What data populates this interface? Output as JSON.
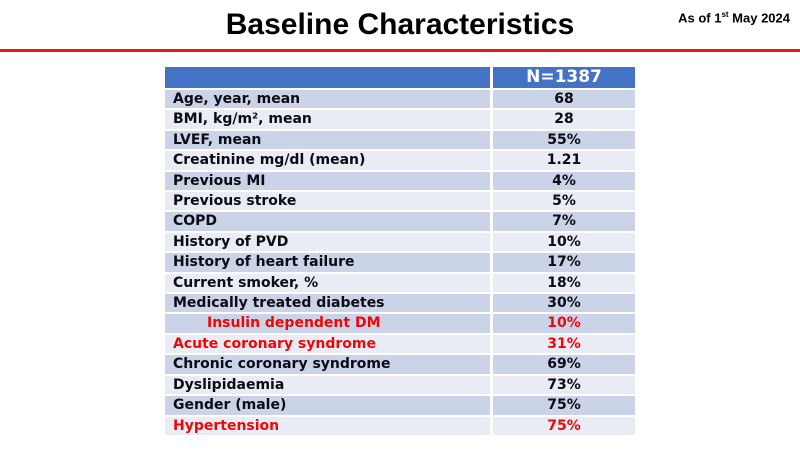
{
  "slide": {
    "title": "Baseline Characteristics",
    "as_of": {
      "prefix": "As of 1",
      "superscript": "st",
      "suffix": " May 2024"
    },
    "divider_color": "#E21B1B"
  },
  "table": {
    "n_header": "N=1387",
    "colors": {
      "header_bg": "#4472C4",
      "header_text": "#FFFFFF",
      "band_dark": "#CBD3E9",
      "band_light": "#E9EBF5",
      "text": "#0B0B12",
      "red_text": "#EE0707"
    },
    "rows": [
      {
        "label": "Age, year, mean",
        "value": "68",
        "shade": "dark",
        "red": false,
        "indent": false
      },
      {
        "label": "BMI, kg/m², mean",
        "value": "28",
        "shade": "light",
        "red": false,
        "indent": false
      },
      {
        "label": "LVEF, mean",
        "value": "55%",
        "shade": "dark",
        "red": false,
        "indent": false
      },
      {
        "label": "Creatinine mg/dl (mean)",
        "value": "1.21",
        "shade": "light",
        "red": false,
        "indent": false
      },
      {
        "label": "Previous MI",
        "value": "4%",
        "shade": "dark",
        "red": false,
        "indent": false
      },
      {
        "label": "Previous stroke",
        "value": "5%",
        "shade": "light",
        "red": false,
        "indent": false
      },
      {
        "label": "COPD",
        "value": "7%",
        "shade": "dark",
        "red": false,
        "indent": false
      },
      {
        "label": "History of PVD",
        "value": "10%",
        "shade": "light",
        "red": false,
        "indent": false
      },
      {
        "label": "History of heart failure",
        "value": "17%",
        "shade": "dark",
        "red": false,
        "indent": false
      },
      {
        "label": "Current smoker, %",
        "value": "18%",
        "shade": "light",
        "red": false,
        "indent": false
      },
      {
        "label": "Medically treated diabetes",
        "value": "30%",
        "shade": "dark",
        "red": false,
        "indent": false
      },
      {
        "label": "Insulin dependent DM",
        "value": "10%",
        "shade": "dark",
        "red": true,
        "indent": true
      },
      {
        "label": "Acute coronary syndrome",
        "value": "31%",
        "shade": "light",
        "red": true,
        "indent": false
      },
      {
        "label": "Chronic coronary syndrome",
        "value": "69%",
        "shade": "dark",
        "red": false,
        "indent": false
      },
      {
        "label": "Dyslipidaemia",
        "value": "73%",
        "shade": "light",
        "red": false,
        "indent": false
      },
      {
        "label": "Gender (male)",
        "value": "75%",
        "shade": "dark",
        "red": false,
        "indent": false
      },
      {
        "label": "Hypertension",
        "value": "75%",
        "shade": "light",
        "red": true,
        "indent": false
      }
    ]
  }
}
